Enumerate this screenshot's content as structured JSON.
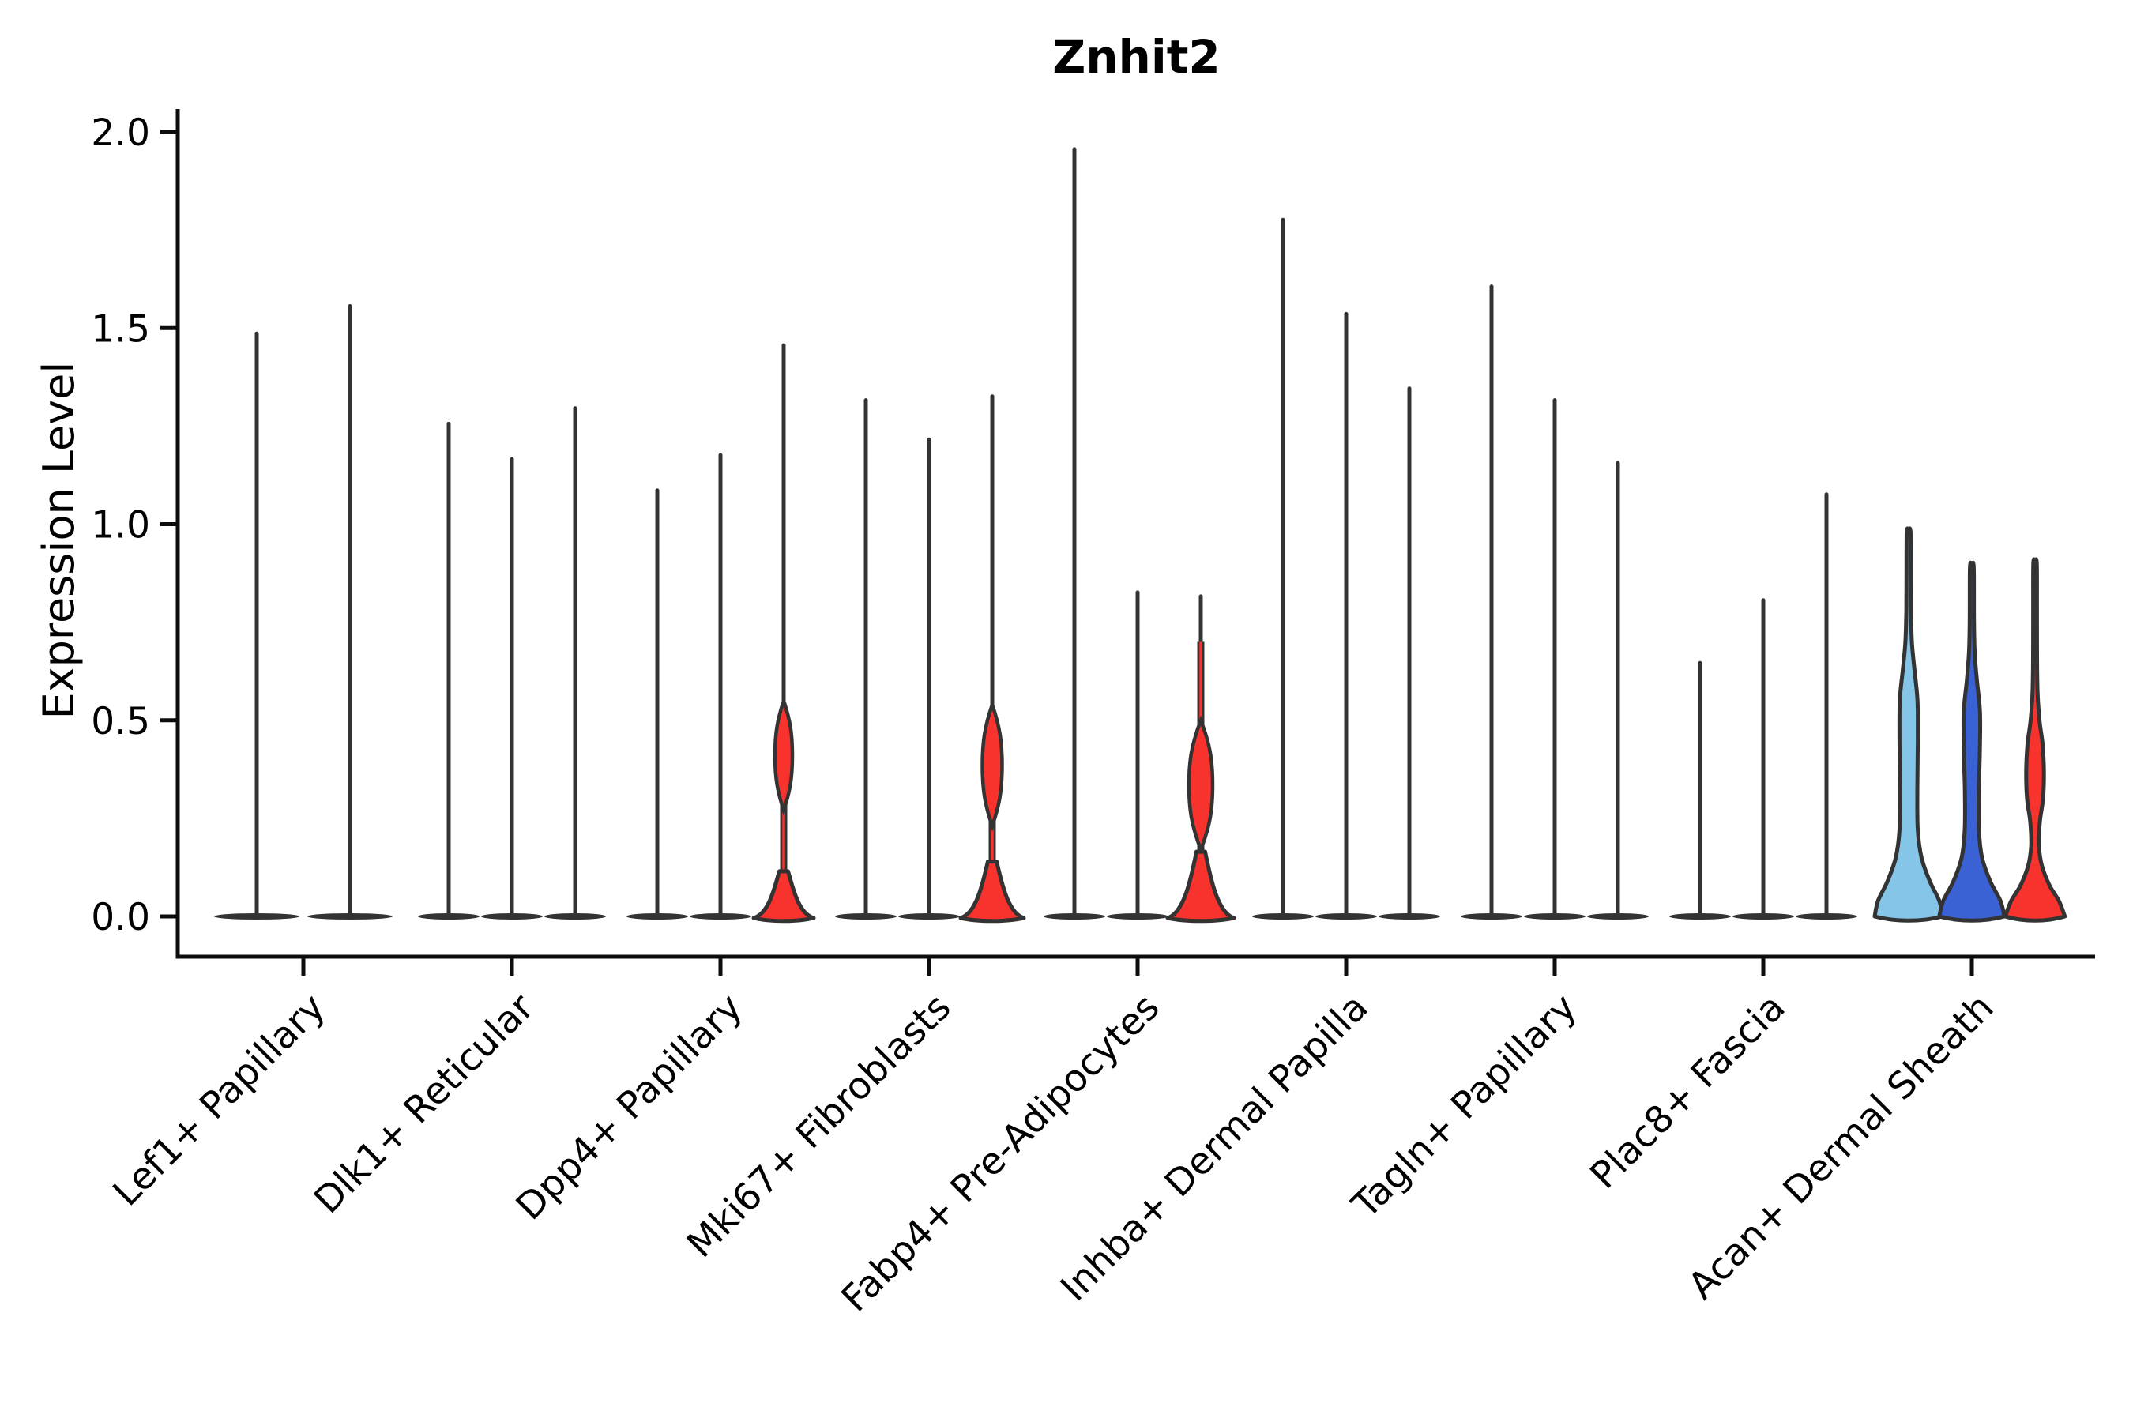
{
  "chart_data": {
    "type": "violin",
    "title": "Znhit2",
    "ylabel": "Expression Level",
    "ylim": [
      0,
      2.05
    ],
    "grid": false,
    "legend": "none",
    "yticks": [
      {
        "label": "0.0",
        "value": 0.0
      },
      {
        "label": "0.5",
        "value": 0.5
      },
      {
        "label": "1.0",
        "value": 1.0
      },
      {
        "label": "1.5",
        "value": 1.5
      },
      {
        "label": "2.0",
        "value": 2.0
      }
    ],
    "categories": [
      "Lef1+ Papillary",
      "Dlk1+ Reticular",
      "Dpp4+ Papillary",
      "Mki67+ Fibroblasts",
      "Fabp4+ Pre-Adipocytes",
      "Inhba+ Dermal Papilla",
      "Tagln+ Papillary",
      "Plac8+ Fascia",
      "Acan+ Dermal Sheath"
    ],
    "colors": {
      "spike": "#333333",
      "outline": "#333333",
      "red": "#F8322C",
      "sky": "#85C5E8",
      "royal": "#3B62D4",
      "axis": "#0d0d0d",
      "text": "#000000"
    },
    "groups": [
      {
        "label": "Lef1+ Papillary",
        "violins": [
          {
            "style": "spike",
            "max": 1.49
          },
          {
            "style": "spike",
            "max": 1.56
          }
        ]
      },
      {
        "label": "Dlk1+ Reticular",
        "violins": [
          {
            "style": "spike",
            "max": 1.26
          },
          {
            "style": "spike",
            "max": 1.17
          },
          {
            "style": "spike",
            "max": 1.3
          }
        ]
      },
      {
        "label": "Dpp4+ Papillary",
        "violins": [
          {
            "style": "spike",
            "max": 1.09
          },
          {
            "style": "spike",
            "max": 1.18
          },
          {
            "style": "spike_red",
            "max": 1.46,
            "fill_key": "red",
            "bell": {
              "top": 0.115,
              "halfwidth": 38
            },
            "bulge": {
              "center": 0.41,
              "halfspan": 0.14,
              "halfwidth": 11
            }
          }
        ]
      },
      {
        "label": "Mki67+ Fibroblasts",
        "violins": [
          {
            "style": "spike",
            "max": 1.32
          },
          {
            "style": "spike",
            "max": 1.22
          },
          {
            "style": "spike_red",
            "max": 1.33,
            "fill_key": "red",
            "bell": {
              "top": 0.14,
              "halfwidth": 40
            },
            "bulge": {
              "center": 0.385,
              "halfspan": 0.155,
              "halfwidth": 12.5
            }
          }
        ]
      },
      {
        "label": "Fabp4+ Pre-Adipocytes",
        "violins": [
          {
            "style": "spike",
            "max": 1.96
          },
          {
            "style": "spike",
            "max": 0.83
          },
          {
            "style": "spike_red",
            "max": 0.82,
            "fill_key": "red",
            "red_neck_to": 0.7,
            "bell": {
              "top": 0.165,
              "halfwidth": 42
            },
            "bulge": {
              "center": 0.335,
              "halfspan": 0.165,
              "halfwidth": 15
            }
          }
        ]
      },
      {
        "label": "Inhba+ Dermal Papilla",
        "violins": [
          {
            "style": "spike",
            "max": 1.78
          },
          {
            "style": "spike",
            "max": 1.54
          },
          {
            "style": "spike",
            "max": 1.35
          }
        ]
      },
      {
        "label": "Tagln+ Papillary",
        "violins": [
          {
            "style": "spike",
            "max": 1.61
          },
          {
            "style": "spike",
            "max": 1.32
          },
          {
            "style": "spike",
            "max": 1.16
          }
        ]
      },
      {
        "label": "Plac8+ Fascia",
        "violins": [
          {
            "style": "spike",
            "max": 0.65
          },
          {
            "style": "spike",
            "max": 0.81
          },
          {
            "style": "spike",
            "max": 1.08
          }
        ]
      },
      {
        "label": "Acan+ Dermal Sheath",
        "violins": [
          {
            "style": "filled",
            "max": 0.98,
            "fill_key": "sky",
            "profile": [
              [
                0.0,
                1.0
              ],
              [
                0.04,
                0.9
              ],
              [
                0.09,
                0.62
              ],
              [
                0.15,
                0.38
              ],
              [
                0.22,
                0.27
              ],
              [
                0.32,
                0.255
              ],
              [
                0.45,
                0.27
              ],
              [
                0.55,
                0.26
              ],
              [
                0.63,
                0.17
              ],
              [
                0.7,
                0.095
              ],
              [
                0.78,
                0.068
              ],
              [
                0.88,
                0.062
              ],
              [
                0.98,
                0.055
              ]
            ]
          },
          {
            "style": "filled",
            "max": 0.89,
            "fill_key": "royal",
            "profile": [
              [
                0.0,
                0.96
              ],
              [
                0.04,
                0.84
              ],
              [
                0.09,
                0.54
              ],
              [
                0.15,
                0.3
              ],
              [
                0.22,
                0.21
              ],
              [
                0.32,
                0.205
              ],
              [
                0.42,
                0.235
              ],
              [
                0.52,
                0.24
              ],
              [
                0.6,
                0.15
              ],
              [
                0.67,
                0.085
              ],
              [
                0.75,
                0.062
              ],
              [
                0.89,
                0.055
              ]
            ]
          },
          {
            "style": "filled",
            "max": 0.9,
            "fill_key": "red",
            "profile": [
              [
                0.0,
                0.88
              ],
              [
                0.04,
                0.7
              ],
              [
                0.08,
                0.42
              ],
              [
                0.13,
                0.2
              ],
              [
                0.18,
                0.115
              ],
              [
                0.24,
                0.14
              ],
              [
                0.3,
                0.235
              ],
              [
                0.37,
                0.26
              ],
              [
                0.44,
                0.22
              ],
              [
                0.5,
                0.13
              ],
              [
                0.57,
                0.075
              ],
              [
                0.66,
                0.058
              ],
              [
                0.78,
                0.055
              ],
              [
                0.9,
                0.052
              ]
            ]
          }
        ]
      }
    ]
  }
}
